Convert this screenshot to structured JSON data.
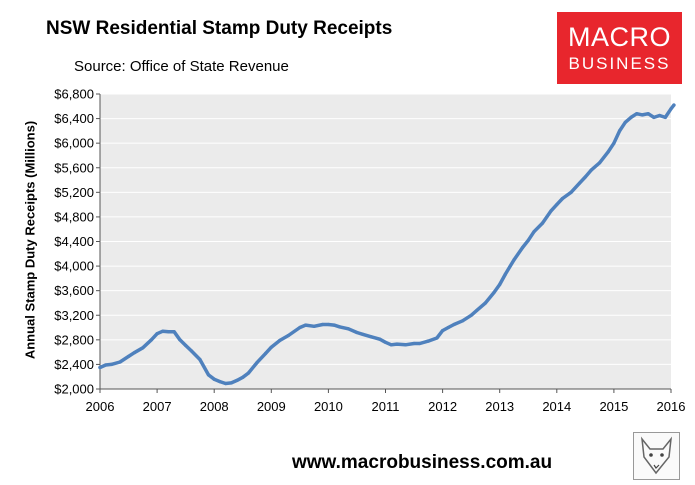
{
  "header": {
    "title": "NSW Residential Stamp Duty Receipts",
    "source": "Source: Office of State Revenue"
  },
  "logo": {
    "line1": "MACRO",
    "line2": "BUSINESS"
  },
  "footer": {
    "website": "www.macrobusiness.com.au"
  },
  "colors": {
    "line": "#4f81bd",
    "plot_bg": "#ebebeb",
    "logo_bg": "#e8262d"
  },
  "chart_data": {
    "type": "line",
    "title": "NSW Residential Stamp Duty Receipts",
    "ylabel": "Annual Stamp Duty Receipts (Millions)",
    "xlabel": "",
    "xlim": [
      2006,
      2016
    ],
    "ylim": [
      2000,
      6800
    ],
    "yticks": [
      2000,
      2400,
      2800,
      3200,
      3600,
      4000,
      4400,
      4800,
      5200,
      5600,
      6000,
      6400,
      6800
    ],
    "ytick_labels": [
      "$2,000",
      "$2,400",
      "$2,800",
      "$3,200",
      "$3,600",
      "$4,000",
      "$4,400",
      "$4,800",
      "$5,200",
      "$5,600",
      "$6,000",
      "$6,400",
      "$6,800"
    ],
    "xticks": [
      2006,
      2007,
      2008,
      2009,
      2010,
      2011,
      2012,
      2013,
      2014,
      2015,
      2016
    ],
    "xtick_labels": [
      "2006",
      "2007",
      "2008",
      "2009",
      "2010",
      "2011",
      "2012",
      "2013",
      "2014",
      "2015",
      "2016"
    ],
    "grid": true,
    "series": [
      {
        "x": [
          2006.0,
          2006.1,
          2006.2,
          2006.35,
          2006.5,
          2006.6,
          2006.75,
          2006.9,
          2007.0,
          2007.1,
          2007.2,
          2007.3,
          2007.4,
          2007.5,
          2007.6,
          2007.75,
          2007.9,
          2008.0,
          2008.1,
          2008.2,
          2008.3,
          2008.4,
          2008.5,
          2008.6,
          2008.75,
          2008.9,
          2009.0,
          2009.15,
          2009.3,
          2009.5,
          2009.6,
          2009.75,
          2009.9,
          2010.0,
          2010.1,
          2010.2,
          2010.35,
          2010.5,
          2010.6,
          2010.75,
          2010.9,
          2011.0,
          2011.1,
          2011.2,
          2011.35,
          2011.5,
          2011.6,
          2011.75,
          2011.9,
          2012.0,
          2012.1,
          2012.2,
          2012.35,
          2012.5,
          2012.6,
          2012.75,
          2012.9,
          2013.0,
          2013.1,
          2013.25,
          2013.4,
          2013.5,
          2013.6,
          2013.75,
          2013.9,
          2014.0,
          2014.1,
          2014.25,
          2014.4,
          2014.5,
          2014.6,
          2014.75,
          2014.9,
          2015.0,
          2015.1,
          2015.2,
          2015.3,
          2015.4,
          2015.5,
          2015.6,
          2015.7,
          2015.8,
          2015.9,
          2016.0,
          2016.05
        ],
        "values": [
          2350,
          2390,
          2400,
          2440,
          2530,
          2590,
          2670,
          2800,
          2900,
          2940,
          2930,
          2930,
          2800,
          2710,
          2620,
          2480,
          2230,
          2160,
          2120,
          2090,
          2100,
          2140,
          2190,
          2260,
          2430,
          2580,
          2680,
          2790,
          2870,
          3000,
          3040,
          3020,
          3050,
          3050,
          3040,
          3010,
          2980,
          2920,
          2890,
          2850,
          2810,
          2760,
          2720,
          2730,
          2720,
          2740,
          2740,
          2780,
          2830,
          2950,
          3000,
          3050,
          3110,
          3200,
          3280,
          3400,
          3570,
          3700,
          3870,
          4100,
          4300,
          4420,
          4560,
          4700,
          4900,
          5000,
          5100,
          5200,
          5350,
          5450,
          5560,
          5680,
          5860,
          6000,
          6200,
          6340,
          6420,
          6480,
          6460,
          6480,
          6420,
          6450,
          6420,
          6560,
          6620
        ]
      }
    ]
  }
}
